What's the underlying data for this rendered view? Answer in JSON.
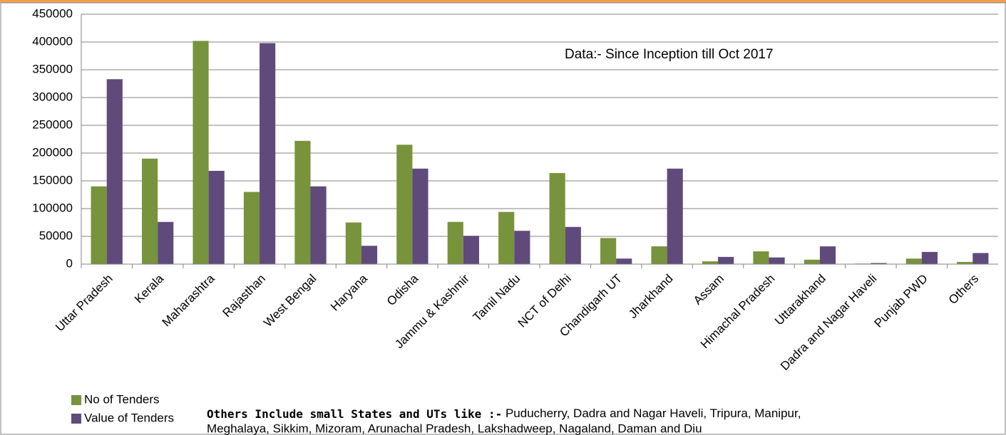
{
  "chart_data": {
    "type": "bar",
    "categories": [
      "Uttar Pradesh",
      "Kerala",
      "Maharashtra",
      "Rajasthan",
      "West Bengal",
      "Haryana",
      "Odisha",
      "Jammu & Kashmir",
      "Tamil Nadu",
      "NCT of Delhi",
      "Chandigarh UT",
      "Jharkhand",
      "Assam",
      "Himachal Pradesh",
      "Uttarakhand",
      "Dadra and Nagar Haveli",
      "Punjab PWD",
      "Others"
    ],
    "series": [
      {
        "name": "No of Tenders",
        "color": "#77933c",
        "values": [
          140000,
          190000,
          402000,
          130000,
          222000,
          75000,
          215000,
          76000,
          94000,
          164000,
          47000,
          32000,
          5000,
          23000,
          8000,
          1000,
          10000,
          4000
        ]
      },
      {
        "name": "Value of Tenders",
        "color": "#604a7b",
        "values": [
          333000,
          76000,
          168000,
          398000,
          140000,
          33000,
          172000,
          51000,
          60000,
          67000,
          10000,
          172000,
          13000,
          12000,
          32000,
          2000,
          22000,
          20000
        ]
      }
    ],
    "ylim": [
      0,
      450000
    ],
    "yticks": [
      0,
      50000,
      100000,
      150000,
      200000,
      250000,
      300000,
      350000,
      400000,
      450000
    ],
    "grid": true,
    "annotation": "Data:-  Since Inception till Oct 2017",
    "note_heading": "Others Include small States and UTs like :-",
    "note_lines": [
      " Puducherry, Dadra and Nagar Haveli, Tripura, Manipur,",
      "Meghalaya, Sikkim, Mizoram, Arunachal Pradesh, Lakshadweep, Nagaland, Daman and Diu"
    ]
  }
}
